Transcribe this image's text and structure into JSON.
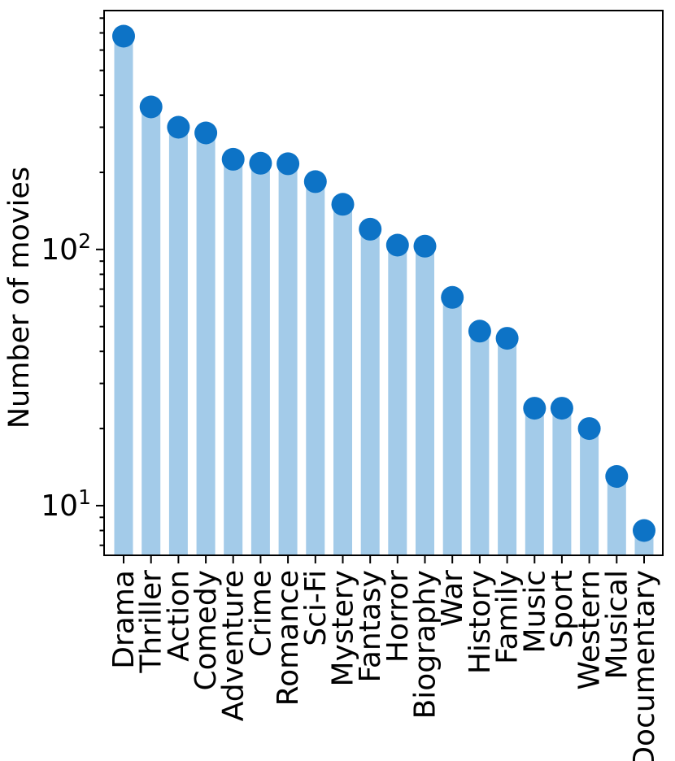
{
  "chart_data": {
    "type": "bar",
    "title": "",
    "xlabel": "",
    "ylabel": "Number of movies",
    "yscale": "log",
    "ylim": [
      6.4,
      856
    ],
    "y_major_ticks": [
      10,
      100
    ],
    "grid": false,
    "legend": null,
    "categories": [
      "Drama",
      "Thriller",
      "Action",
      "Comedy",
      "Adventure",
      "Crime",
      "Romance",
      "Sci-Fi",
      "Mystery",
      "Fantasy",
      "Horror",
      "Biography",
      "War",
      "History",
      "Family",
      "Music",
      "Sport",
      "Western",
      "Musical",
      "Documentary"
    ],
    "values": [
      680,
      360,
      300,
      285,
      225,
      217,
      216,
      184,
      150,
      120,
      104,
      103,
      65,
      48,
      45,
      24,
      24,
      20,
      13,
      8
    ],
    "colors": {
      "bar": "#a3cbe9",
      "dot": "#0d73c6",
      "axis": "#000000"
    }
  }
}
